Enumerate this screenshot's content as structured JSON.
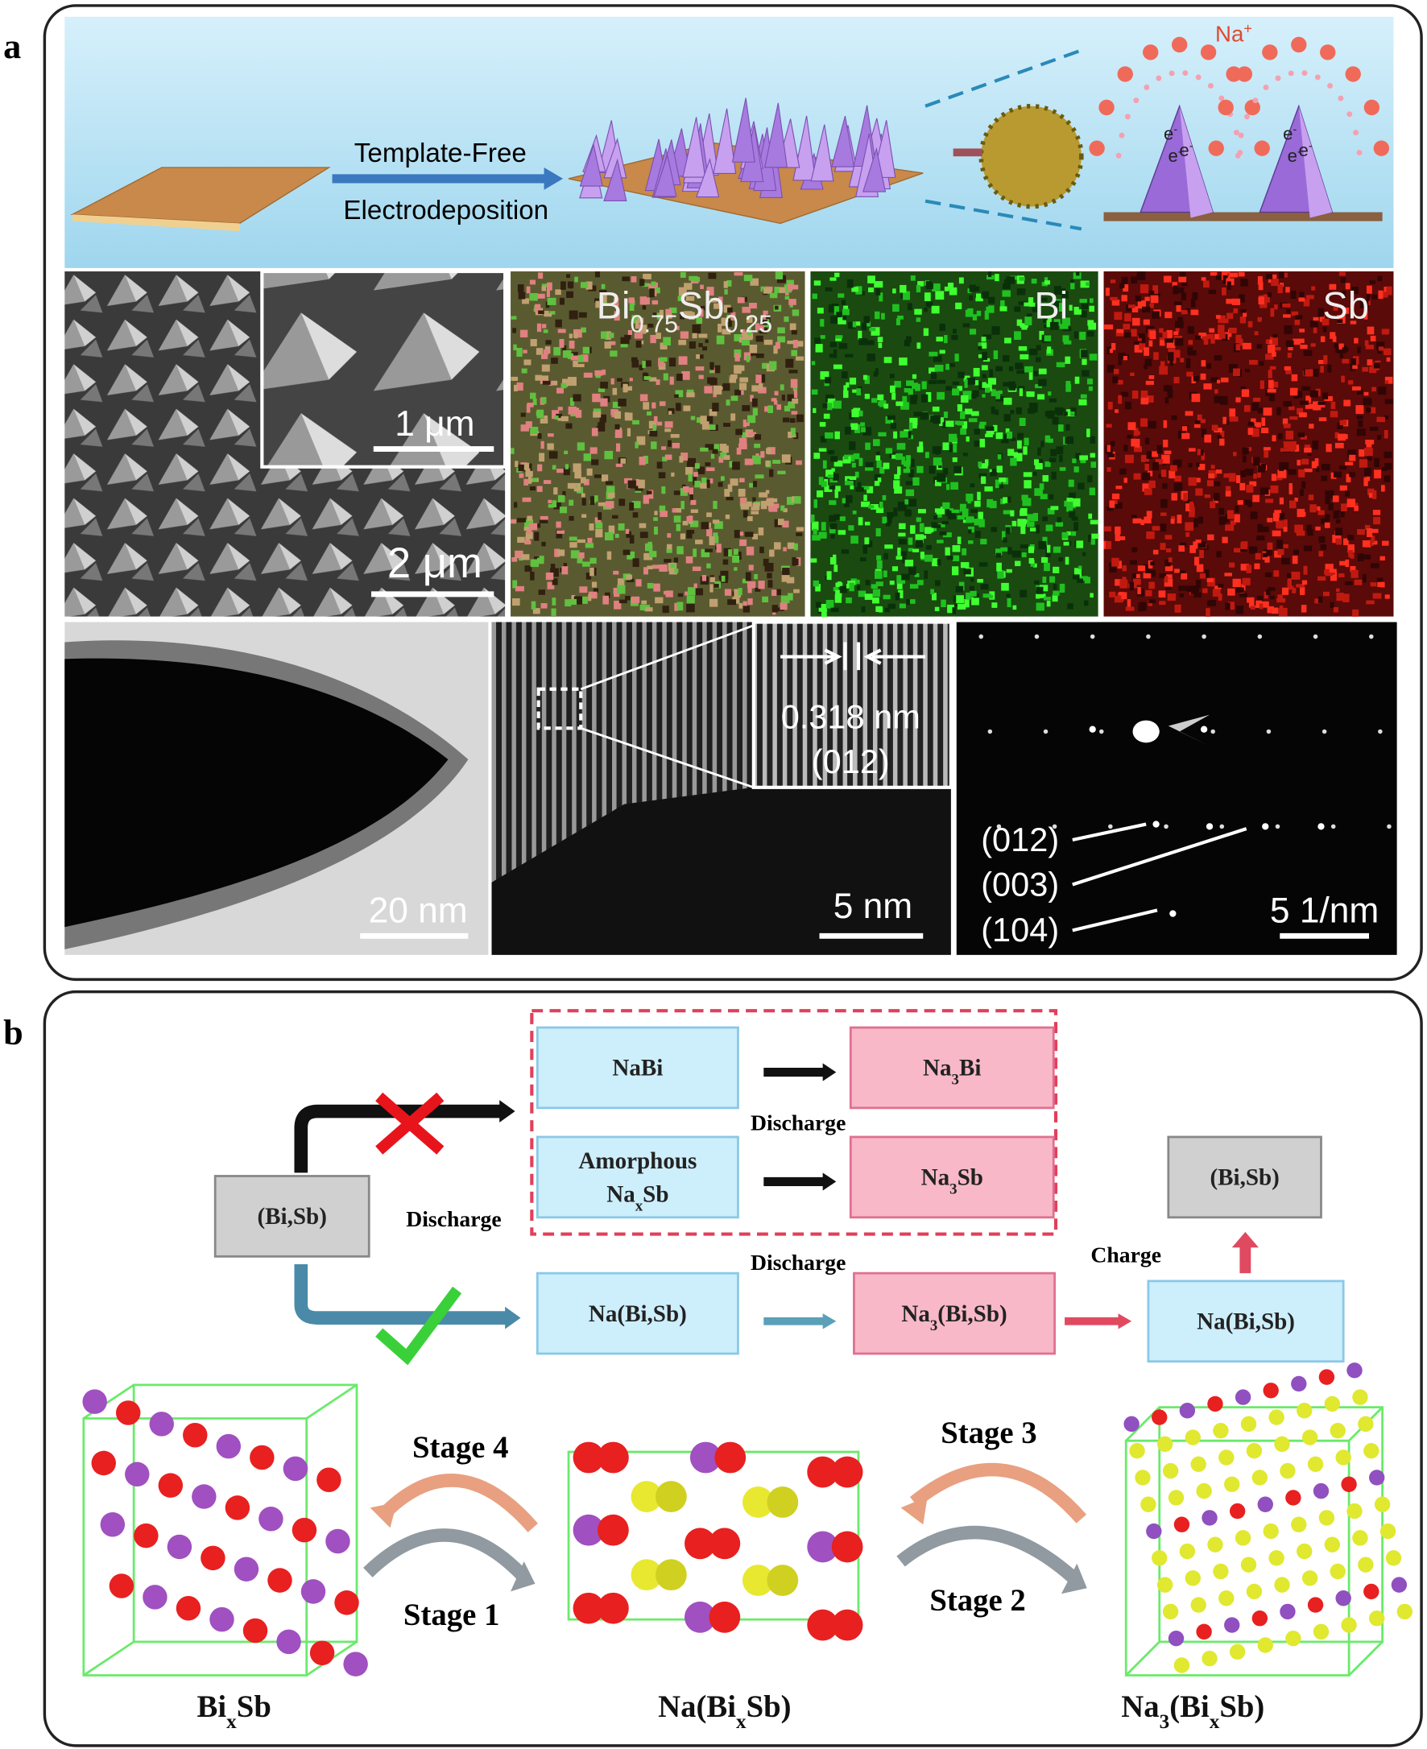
{
  "panel_a": {
    "label": "a",
    "schematic": {
      "step_top": "Template-Free",
      "step_bottom": "Electrodeposition",
      "ion": [
        "Na",
        "+"
      ],
      "electron": [
        "e",
        "-"
      ]
    },
    "sem": {
      "inset_scale": "1 μm",
      "scale": "2 μm"
    },
    "eds": {
      "composite": [
        "Bi",
        "0.75",
        "Sb",
        "0.25"
      ],
      "bi": "Bi",
      "sb": "Sb"
    },
    "tem": {
      "scale": "20 nm"
    },
    "hrtem": {
      "spacing": "0.318 nm",
      "plane": "(012)",
      "scale": "5 nm"
    },
    "saed": {
      "planes": [
        "(012)",
        "(003)",
        "(104)"
      ],
      "scale": "5 1/nm"
    }
  },
  "panel_b": {
    "label": "b",
    "nodes": {
      "start": [
        [
          "(Bi,Sb)"
        ]
      ],
      "nabi": [
        [
          "NaBi"
        ]
      ],
      "na3bi": [
        [
          "Na",
          "3",
          "Bi"
        ]
      ],
      "amorphous": [
        [
          "Amorphous"
        ],
        [
          "Na",
          "x",
          "Sb"
        ]
      ],
      "na3sb": [
        [
          "Na",
          "3",
          "Sb"
        ]
      ],
      "nabisb": [
        [
          "Na(Bi,Sb)"
        ]
      ],
      "na3bisb": [
        [
          "Na",
          "3",
          "(Bi,Sb)"
        ]
      ],
      "nabisb_charge": [
        [
          "Na(Bi,Sb)"
        ]
      ],
      "end": [
        [
          "(Bi,Sb)"
        ]
      ]
    },
    "arrow_labels": {
      "discharge_top": "Discharge",
      "discharge_left": "Discharge",
      "discharge_bottom": "Discharge",
      "charge": "Charge"
    },
    "stages": {
      "stage4": "Stage 4",
      "stage1": "Stage 1",
      "stage3": "Stage 3",
      "stage2": "Stage 2"
    },
    "structures": {
      "bixsb": [
        "Bi",
        "x",
        "Sb"
      ],
      "na_bixsb": [
        "Na(Bi",
        "x",
        "Sb)"
      ],
      "na3_bixsb": [
        "Na",
        "3",
        "(Bi",
        "x",
        "Sb)"
      ]
    }
  }
}
